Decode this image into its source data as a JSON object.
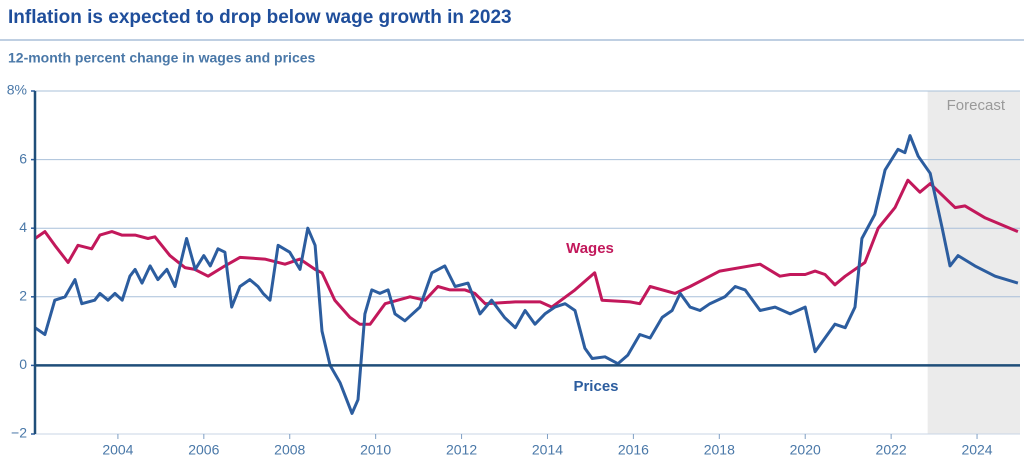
{
  "chart_data": {
    "type": "line",
    "title": "Inflation is expected to drop below wage growth in 2023",
    "subtitle": "12-month percent change in wages and prices",
    "forecast_label": "Forecast",
    "forecast_start": 2022.85,
    "xlim": [
      2002,
      2025
    ],
    "xticks": [
      2004,
      2006,
      2008,
      2010,
      2012,
      2014,
      2016,
      2018,
      2020,
      2022,
      2024
    ],
    "ylim": [
      -2,
      8
    ],
    "yticks": [
      {
        "value": -2,
        "label": "−2"
      },
      0,
      2,
      4,
      6,
      {
        "value": 8,
        "label": "8%"
      }
    ],
    "grid": true,
    "series": [
      {
        "name": "Wages",
        "color": "#c2185b",
        "x": [
          2002.07,
          2002.3,
          2002.53,
          2002.84,
          2003.07,
          2003.39,
          2003.58,
          2003.86,
          2004.09,
          2004.4,
          2004.7,
          2004.86,
          2005.21,
          2005.56,
          2005.79,
          2006.1,
          2006.49,
          2006.84,
          2007.42,
          2007.89,
          2008.24,
          2008.59,
          2008.75,
          2009.05,
          2009.4,
          2009.63,
          2009.87,
          2010.22,
          2010.8,
          2011.15,
          2011.45,
          2011.73,
          2012.08,
          2012.31,
          2012.55,
          2013.25,
          2013.83,
          2014.1,
          2014.64,
          2015.1,
          2015.27,
          2015.92,
          2016.15,
          2016.39,
          2016.97,
          2017.32,
          2018.01,
          2018.95,
          2019.41,
          2019.65,
          2020.0,
          2020.23,
          2020.46,
          2020.69,
          2020.93,
          2021.39,
          2021.7,
          2022.09,
          2022.39,
          2022.67,
          2022.91,
          2023.49,
          2023.72,
          2024.19,
          2024.95
        ],
        "values": [
          3.7,
          3.9,
          3.5,
          3.0,
          3.5,
          3.4,
          3.8,
          3.9,
          3.8,
          3.8,
          3.7,
          3.75,
          3.2,
          2.85,
          2.8,
          2.6,
          2.9,
          3.15,
          3.1,
          2.95,
          3.1,
          2.8,
          2.7,
          1.9,
          1.4,
          1.2,
          1.2,
          1.8,
          2.0,
          1.9,
          2.3,
          2.2,
          2.2,
          2.1,
          1.8,
          1.85,
          1.85,
          1.7,
          2.2,
          2.7,
          1.9,
          1.85,
          1.8,
          2.3,
          2.1,
          2.3,
          2.75,
          2.95,
          2.6,
          2.65,
          2.65,
          2.75,
          2.65,
          2.35,
          2.6,
          3.0,
          4.0,
          4.6,
          5.4,
          5.05,
          5.3,
          4.6,
          4.65,
          4.3,
          3.9
        ]
      },
      {
        "name": "Prices",
        "color": "#2c5d9f",
        "x": [
          2002.07,
          2002.3,
          2002.53,
          2002.77,
          2003.0,
          2003.16,
          2003.46,
          2003.58,
          2003.77,
          2003.93,
          2004.1,
          2004.28,
          2004.4,
          2004.56,
          2004.75,
          2004.93,
          2005.14,
          2005.33,
          2005.6,
          2005.8,
          2006.0,
          2006.15,
          2006.33,
          2006.49,
          2006.65,
          2006.84,
          2007.07,
          2007.26,
          2007.38,
          2007.54,
          2007.73,
          2008.0,
          2008.24,
          2008.42,
          2008.59,
          2008.75,
          2008.94,
          2009.17,
          2009.45,
          2009.59,
          2009.75,
          2009.91,
          2010.1,
          2010.29,
          2010.45,
          2010.68,
          2011.03,
          2011.31,
          2011.61,
          2011.85,
          2012.15,
          2012.43,
          2012.7,
          2013.0,
          2013.25,
          2013.48,
          2013.71,
          2013.94,
          2014.17,
          2014.41,
          2014.64,
          2014.87,
          2015.04,
          2015.34,
          2015.64,
          2015.87,
          2016.15,
          2016.39,
          2016.67,
          2016.9,
          2017.09,
          2017.32,
          2017.55,
          2017.78,
          2018.13,
          2018.37,
          2018.6,
          2018.95,
          2019.3,
          2019.65,
          2020.0,
          2020.23,
          2020.46,
          2020.69,
          2020.93,
          2021.16,
          2021.32,
          2021.62,
          2021.86,
          2022.16,
          2022.32,
          2022.44,
          2022.63,
          2022.91,
          2023.19,
          2023.37,
          2023.56,
          2023.95,
          2024.42,
          2024.95
        ],
        "values": [
          1.1,
          0.9,
          1.9,
          2.0,
          2.5,
          1.8,
          1.9,
          2.1,
          1.9,
          2.1,
          1.9,
          2.6,
          2.8,
          2.4,
          2.9,
          2.5,
          2.8,
          2.3,
          3.7,
          2.8,
          3.2,
          2.9,
          3.4,
          3.3,
          1.7,
          2.3,
          2.5,
          2.3,
          2.1,
          1.9,
          3.5,
          3.3,
          2.8,
          4.0,
          3.5,
          1.0,
          0.0,
          -0.5,
          -1.4,
          -1.0,
          1.5,
          2.2,
          2.1,
          2.2,
          1.5,
          1.3,
          1.7,
          2.7,
          2.9,
          2.3,
          2.4,
          1.5,
          1.9,
          1.4,
          1.1,
          1.6,
          1.2,
          1.5,
          1.7,
          1.8,
          1.6,
          0.5,
          0.2,
          0.25,
          0.05,
          0.3,
          0.9,
          0.8,
          1.4,
          1.6,
          2.1,
          1.7,
          1.6,
          1.8,
          2.0,
          2.3,
          2.2,
          1.6,
          1.7,
          1.5,
          1.7,
          0.4,
          0.8,
          1.2,
          1.1,
          1.7,
          3.7,
          4.4,
          5.7,
          6.3,
          6.2,
          6.7,
          6.1,
          5.6,
          4.0,
          2.9,
          3.2,
          2.9,
          2.6,
          2.4
        ]
      }
    ]
  }
}
